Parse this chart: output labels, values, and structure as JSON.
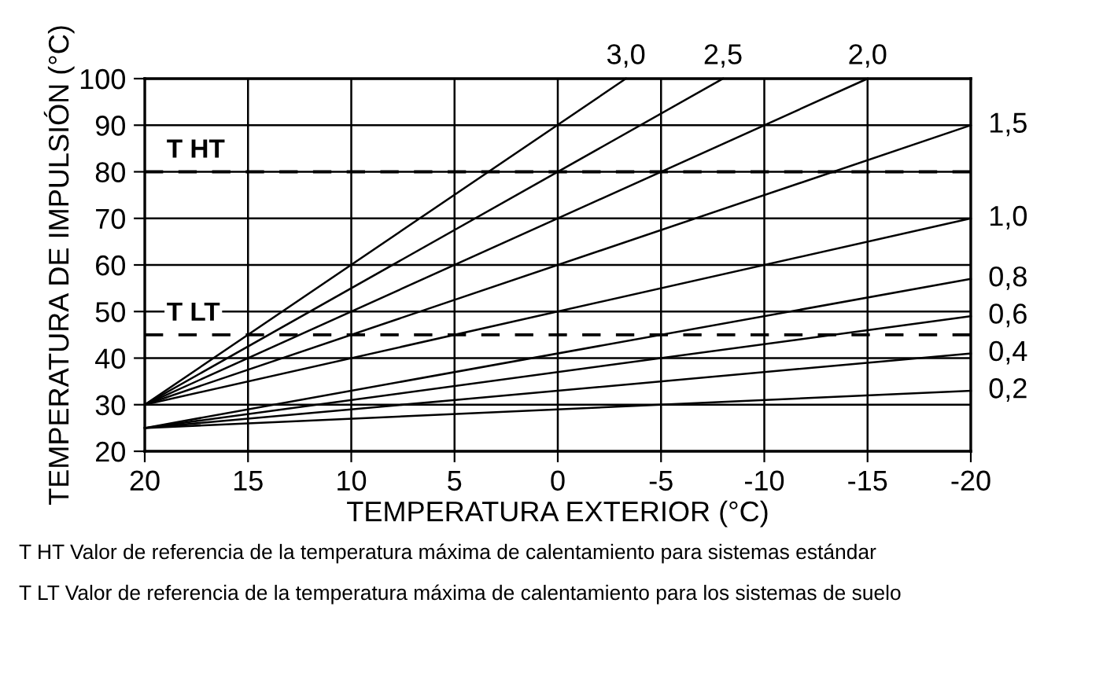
{
  "chart_data": {
    "type": "line",
    "xlabel": "TEMPERATURA EXTERIOR (°C)",
    "ylabel": "TEMPERATURA DE IMPULSIÓN (°C)",
    "xlim": [
      20,
      -20
    ],
    "xticks": [
      20,
      15,
      10,
      5,
      0,
      -5,
      -10,
      -15,
      -20
    ],
    "ylim": [
      20,
      100
    ],
    "yticks": [
      20,
      30,
      40,
      50,
      60,
      70,
      80,
      90,
      100
    ],
    "grid": true,
    "legend": false,
    "marker": "none",
    "line_style": "solid",
    "series": [
      {
        "name": "3,0",
        "color": "#000000",
        "x": [
          20,
          -3.3
        ],
        "values": [
          30,
          100
        ]
      },
      {
        "name": "2,5",
        "color": "#000000",
        "x": [
          20,
          -8
        ],
        "values": [
          30,
          100
        ]
      },
      {
        "name": "2,0",
        "color": "#000000",
        "x": [
          20,
          -15
        ],
        "values": [
          30,
          100
        ]
      },
      {
        "name": "1,5",
        "color": "#000000",
        "x": [
          20,
          -20
        ],
        "values": [
          30,
          90
        ]
      },
      {
        "name": "1,0",
        "color": "#000000",
        "x": [
          20,
          -20
        ],
        "values": [
          30,
          70
        ]
      },
      {
        "name": "0,8",
        "color": "#000000",
        "x": [
          20,
          -20
        ],
        "values": [
          25,
          57
        ]
      },
      {
        "name": "0,6",
        "color": "#000000",
        "x": [
          20,
          -20
        ],
        "values": [
          25,
          49
        ]
      },
      {
        "name": "0,4",
        "color": "#000000",
        "x": [
          20,
          -20
        ],
        "values": [
          25,
          41
        ]
      },
      {
        "name": "0,2",
        "color": "#000000",
        "x": [
          20,
          -20
        ],
        "values": [
          25,
          33
        ]
      }
    ],
    "ref_lines": [
      {
        "axis": "y",
        "value": 80,
        "label": "T HT",
        "color": "#000000",
        "line_style": "dashed"
      },
      {
        "axis": "y",
        "value": 45,
        "label": "T LT",
        "color": "#000000",
        "line_style": "dashed"
      }
    ],
    "annotations": [
      "T HT Valor de referencia de la temperatura máxima de calentamiento para sistemas estándar",
      "T LT Valor de referencia de la temperatura máxima de calentamiento para los sistemas de suelo"
    ]
  }
}
